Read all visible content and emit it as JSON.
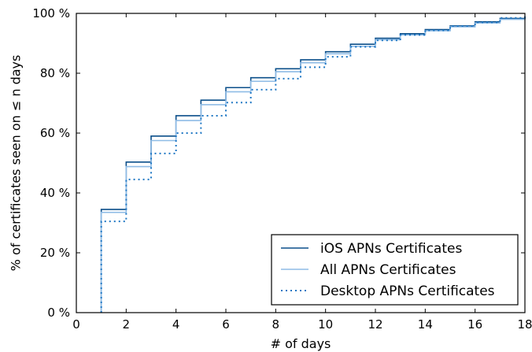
{
  "chart_data": {
    "type": "line",
    "step": true,
    "xlabel": "# of days",
    "ylabel": "% of certificates seen on ≤ n days",
    "xlim": [
      0,
      18
    ],
    "ylim": [
      0,
      100
    ],
    "xticks": [
      0,
      2,
      4,
      6,
      8,
      10,
      12,
      14,
      16,
      18
    ],
    "yticks": [
      0,
      20,
      40,
      60,
      80,
      100
    ],
    "ytick_suffix": " %",
    "grid": false,
    "legend_position": "lower-right",
    "x": [
      1,
      2,
      3,
      4,
      5,
      6,
      7,
      8,
      9,
      10,
      11,
      12,
      13,
      14,
      15,
      16,
      17,
      18
    ],
    "series": [
      {
        "name": "iOS APNs Certificates",
        "color": "#0b4f8a",
        "style": "solid",
        "values": [
          34.5,
          50.3,
          59.0,
          65.8,
          71.0,
          75.2,
          78.5,
          81.5,
          84.5,
          87.2,
          89.7,
          91.7,
          93.2,
          94.6,
          95.8,
          97.2,
          98.3,
          99.0
        ]
      },
      {
        "name": "All APNs Certificates",
        "color": "#8fbce6",
        "style": "solid",
        "values": [
          33.5,
          48.8,
          57.5,
          64.2,
          69.5,
          73.8,
          77.3,
          80.5,
          83.5,
          86.5,
          89.0,
          91.2,
          92.8,
          94.2,
          95.5,
          96.8,
          98.0,
          99.0
        ]
      },
      {
        "name": "Desktop APNs Certificates",
        "color": "#1f77c4",
        "style": "dotted",
        "values": [
          30.5,
          44.5,
          53.2,
          60.0,
          65.8,
          70.2,
          74.5,
          78.2,
          82.0,
          85.5,
          88.8,
          91.0,
          92.8,
          94.3,
          95.8,
          97.0,
          98.5,
          99.2
        ]
      }
    ]
  }
}
